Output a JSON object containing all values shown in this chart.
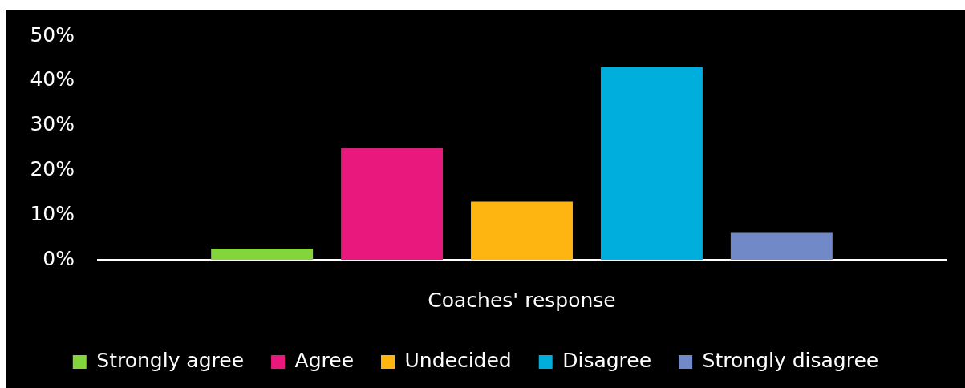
{
  "chart_data": {
    "type": "bar",
    "categories": [
      "Coaches' response"
    ],
    "series": [
      {
        "name": "Strongly agree",
        "color": "#84d43c",
        "values": [
          2.5
        ]
      },
      {
        "name": "Agree",
        "color": "#e8187c",
        "values": [
          25
        ]
      },
      {
        "name": "Undecided",
        "color": "#ffb511",
        "values": [
          13
        ]
      },
      {
        "name": "Disagree",
        "color": "#00aede",
        "values": [
          43
        ]
      },
      {
        "name": "Strongly disagree",
        "color": "#7289c7",
        "values": [
          6
        ]
      }
    ],
    "ylim": [
      0,
      50
    ],
    "yticks": [
      {
        "value": 0,
        "label": "0%"
      },
      {
        "value": 10,
        "label": "10%"
      },
      {
        "value": 20,
        "label": "20%"
      },
      {
        "value": 30,
        "label": "30%"
      },
      {
        "value": 40,
        "label": "40%"
      },
      {
        "value": 50,
        "label": "50%"
      }
    ],
    "grid": false,
    "legend": "bottom"
  }
}
